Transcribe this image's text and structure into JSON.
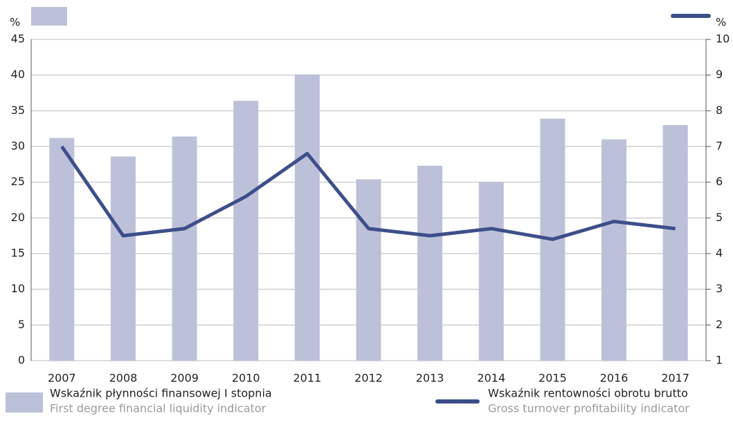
{
  "chart_data": {
    "type": "bar_line",
    "y_unit": "%",
    "y2_unit": "%",
    "categories": [
      "2007",
      "2008",
      "2009",
      "2010",
      "2011",
      "2012",
      "2013",
      "2014",
      "2015",
      "2016",
      "2017"
    ],
    "series": [
      {
        "name": "Wskaźnik płynności finansowej I stopnia",
        "name_en": "First degree financial liquidity indicator",
        "type": "bar",
        "color": "#bcc1d9",
        "values": [
          31.2,
          28.6,
          31.4,
          36.4,
          40.1,
          25.4,
          27.3,
          25.0,
          33.9,
          31.0,
          33.0
        ]
      },
      {
        "name": "Wskaźnik rentowności obrotu brutto",
        "name_en": "Gross turnover profitability indicator",
        "type": "line",
        "color": "#3d4f8a",
        "axis": "y2",
        "values": [
          7.0,
          4.5,
          4.7,
          5.6,
          6.8,
          4.7,
          4.5,
          4.7,
          4.4,
          4.9,
          4.7
        ]
      }
    ],
    "ylim": [
      0,
      45
    ],
    "yticks": [
      0,
      5,
      10,
      15,
      20,
      25,
      30,
      35,
      40,
      45
    ],
    "y2lim": [
      1,
      10
    ],
    "y2ticks": [
      1,
      2,
      3,
      4,
      5,
      6,
      7,
      8,
      9,
      10
    ],
    "grid": true
  }
}
